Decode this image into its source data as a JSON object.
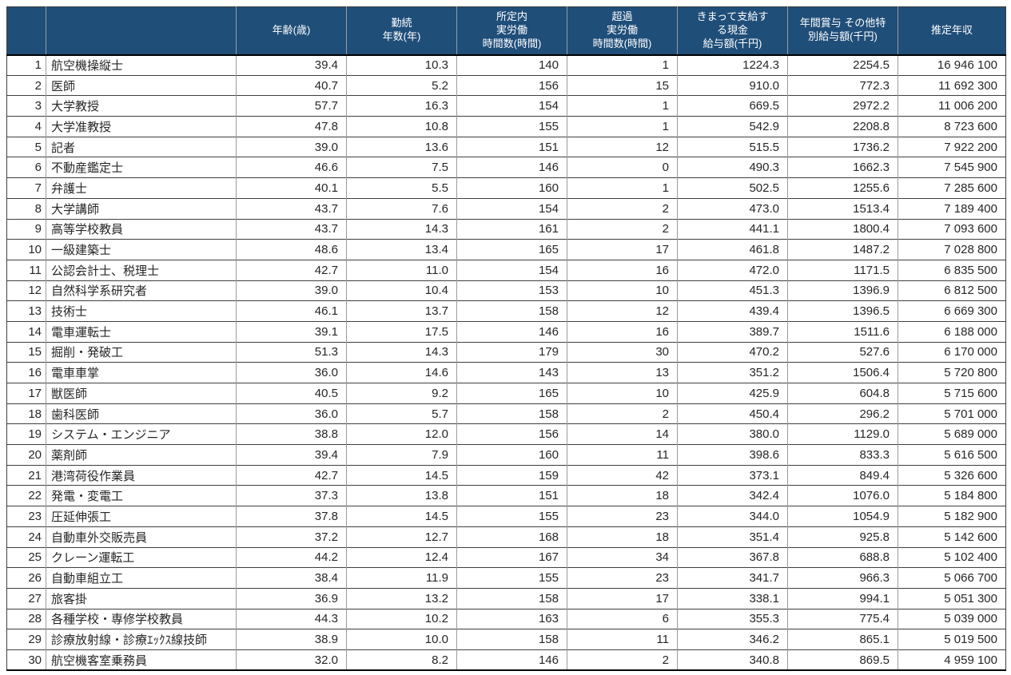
{
  "colors": {
    "header_bg": "#1F4E79",
    "header_text": "#FFFFFF",
    "body_text": "#262626"
  },
  "table": {
    "header": {
      "rank_label": "",
      "occupation_label": "",
      "columns": [
        "年齢(歳)",
        "勤続\n年数(年)",
        "所定内\n実労働\n時間数(時間)",
        "超過\n実労働\n時間数(時間)",
        "きまって支給す\nる現金\n給与額(千円)",
        "年間賞与 その他特\n別給与額(千円)",
        "推定年収"
      ]
    },
    "rows": [
      {
        "rank": "1",
        "occupation": "航空機操縦士",
        "values": [
          "39.4",
          "10.3",
          "140",
          "1",
          "1224.3",
          "2254.5",
          "16 946 100"
        ]
      },
      {
        "rank": "2",
        "occupation": "医師",
        "values": [
          "40.7",
          "5.2",
          "156",
          "15",
          "910.0",
          "772.3",
          "11 692 300"
        ]
      },
      {
        "rank": "3",
        "occupation": "大学教授",
        "values": [
          "57.7",
          "16.3",
          "154",
          "1",
          "669.5",
          "2972.2",
          "11 006 200"
        ]
      },
      {
        "rank": "4",
        "occupation": "大学准教授",
        "values": [
          "47.8",
          "10.8",
          "155",
          "1",
          "542.9",
          "2208.8",
          "8 723 600"
        ]
      },
      {
        "rank": "5",
        "occupation": "記者",
        "values": [
          "39.0",
          "13.6",
          "151",
          "12",
          "515.5",
          "1736.2",
          "7 922 200"
        ]
      },
      {
        "rank": "6",
        "occupation": "不動産鑑定士",
        "values": [
          "46.6",
          "7.5",
          "146",
          "0",
          "490.3",
          "1662.3",
          "7 545 900"
        ]
      },
      {
        "rank": "7",
        "occupation": "弁護士",
        "values": [
          "40.1",
          "5.5",
          "160",
          "1",
          "502.5",
          "1255.6",
          "7 285 600"
        ]
      },
      {
        "rank": "8",
        "occupation": "大学講師",
        "values": [
          "43.7",
          "7.6",
          "154",
          "2",
          "473.0",
          "1513.4",
          "7 189 400"
        ]
      },
      {
        "rank": "9",
        "occupation": "高等学校教員",
        "values": [
          "43.7",
          "14.3",
          "161",
          "2",
          "441.1",
          "1800.4",
          "7 093 600"
        ]
      },
      {
        "rank": "10",
        "occupation": "一級建築士",
        "values": [
          "48.6",
          "13.4",
          "165",
          "17",
          "461.8",
          "1487.2",
          "7 028 800"
        ]
      },
      {
        "rank": "11",
        "occupation": "公認会計士、税理士",
        "values": [
          "42.7",
          "11.0",
          "154",
          "16",
          "472.0",
          "1171.5",
          "6 835 500"
        ]
      },
      {
        "rank": "12",
        "occupation": "自然科学系研究者",
        "values": [
          "39.0",
          "10.4",
          "153",
          "10",
          "451.3",
          "1396.9",
          "6 812 500"
        ]
      },
      {
        "rank": "13",
        "occupation": "技術士",
        "values": [
          "46.1",
          "13.7",
          "158",
          "12",
          "439.4",
          "1396.5",
          "6 669 300"
        ]
      },
      {
        "rank": "14",
        "occupation": "電車運転士",
        "values": [
          "39.1",
          "17.5",
          "146",
          "16",
          "389.7",
          "1511.6",
          "6 188 000"
        ]
      },
      {
        "rank": "15",
        "occupation": "掘削・発破工",
        "values": [
          "51.3",
          "14.3",
          "179",
          "30",
          "470.2",
          "527.6",
          "6 170 000"
        ]
      },
      {
        "rank": "16",
        "occupation": "電車車掌",
        "values": [
          "36.0",
          "14.6",
          "143",
          "13",
          "351.2",
          "1506.4",
          "5 720 800"
        ]
      },
      {
        "rank": "17",
        "occupation": "獣医師",
        "values": [
          "40.5",
          "9.2",
          "165",
          "10",
          "425.9",
          "604.8",
          "5 715 600"
        ]
      },
      {
        "rank": "18",
        "occupation": "歯科医師",
        "values": [
          "36.0",
          "5.7",
          "158",
          "2",
          "450.4",
          "296.2",
          "5 701 000"
        ]
      },
      {
        "rank": "19",
        "occupation": "システム・エンジニア",
        "values": [
          "38.8",
          "12.0",
          "156",
          "14",
          "380.0",
          "1129.0",
          "5 689 000"
        ]
      },
      {
        "rank": "20",
        "occupation": "薬剤師",
        "values": [
          "39.4",
          "7.9",
          "160",
          "11",
          "398.6",
          "833.3",
          "5 616 500"
        ]
      },
      {
        "rank": "21",
        "occupation": "港湾荷役作業員",
        "values": [
          "42.7",
          "14.5",
          "159",
          "42",
          "373.1",
          "849.4",
          "5 326 600"
        ]
      },
      {
        "rank": "22",
        "occupation": "発電・変電工",
        "values": [
          "37.3",
          "13.8",
          "151",
          "18",
          "342.4",
          "1076.0",
          "5 184 800"
        ]
      },
      {
        "rank": "23",
        "occupation": "圧延伸張工",
        "values": [
          "37.8",
          "14.5",
          "155",
          "23",
          "344.0",
          "1054.9",
          "5 182 900"
        ]
      },
      {
        "rank": "24",
        "occupation": "自動車外交販売員",
        "values": [
          "37.2",
          "12.7",
          "168",
          "18",
          "351.4",
          "925.8",
          "5 142 600"
        ]
      },
      {
        "rank": "25",
        "occupation": "クレーン運転工",
        "values": [
          "44.2",
          "12.4",
          "167",
          "34",
          "367.8",
          "688.8",
          "5 102 400"
        ]
      },
      {
        "rank": "26",
        "occupation": "自動車組立工",
        "values": [
          "38.4",
          "11.9",
          "155",
          "23",
          "341.7",
          "966.3",
          "5 066 700"
        ]
      },
      {
        "rank": "27",
        "occupation": "旅客掛",
        "values": [
          "36.9",
          "13.2",
          "158",
          "17",
          "338.1",
          "994.1",
          "5 051 300"
        ]
      },
      {
        "rank": "28",
        "occupation": "各種学校・専修学校教員",
        "values": [
          "44.3",
          "10.2",
          "163",
          "6",
          "355.3",
          "775.4",
          "5 039 000"
        ]
      },
      {
        "rank": "29",
        "occupation": "診療放射線・診療ｴｯｸｽ線技師",
        "values": [
          "38.9",
          "10.0",
          "158",
          "11",
          "346.2",
          "865.1",
          "5 019 500"
        ]
      },
      {
        "rank": "30",
        "occupation": "航空機客室乗務員",
        "values": [
          "32.0",
          "8.2",
          "146",
          "2",
          "340.8",
          "869.5",
          "4 959 100"
        ]
      }
    ]
  }
}
